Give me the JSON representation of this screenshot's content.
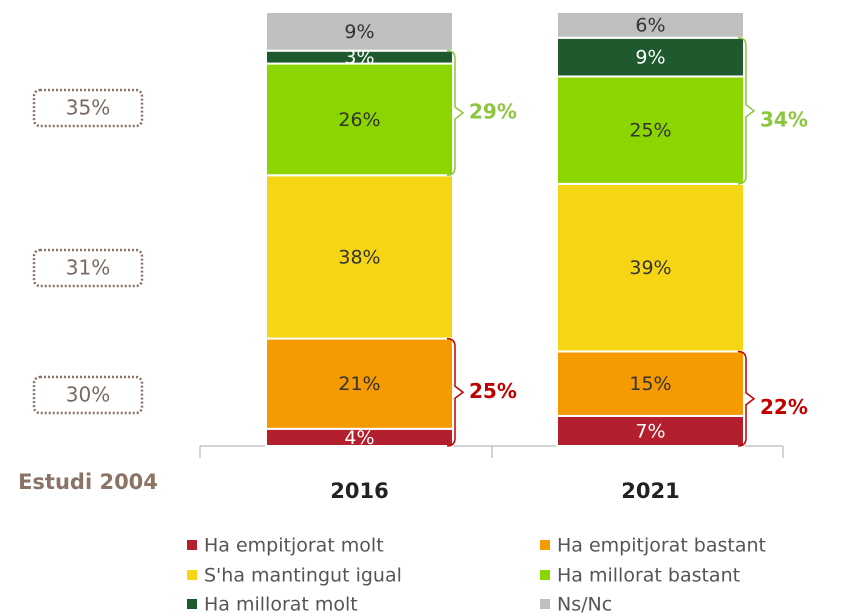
{
  "chart_data": {
    "type": "stacked_bar",
    "categories": [
      "2016",
      "2021"
    ],
    "series": [
      {
        "name": "Ha empitjorat molt",
        "color": "#b41f2e",
        "values": [
          4,
          7
        ],
        "value_labels": [
          "4%",
          "7%"
        ]
      },
      {
        "name": "Ha empitjorat bastant",
        "color": "#f59a00",
        "values": [
          21,
          15
        ],
        "value_labels": [
          "21%",
          "15%"
        ]
      },
      {
        "name": "S'ha mantingut igual",
        "color": "#f6d515",
        "values": [
          38,
          39
        ],
        "value_labels": [
          "38%",
          "39%"
        ]
      },
      {
        "name": "Ha millorat bastant",
        "color": "#8cd600",
        "values": [
          26,
          25
        ],
        "value_labels": [
          "26%",
          "25%"
        ]
      },
      {
        "name": "Ha millorat molt",
        "color": "#1e5a2d",
        "values": [
          3,
          9
        ],
        "value_labels": [
          "3%",
          "9%"
        ]
      },
      {
        "name": "Ns/Nc",
        "color": "#bfbfbf",
        "values": [
          9,
          6
        ],
        "value_labels": [
          "9%",
          "6%"
        ]
      }
    ],
    "brackets": [
      {
        "value": 29,
        "label": "29%",
        "color": "#8cc63f"
      },
      {
        "value": 34,
        "label": "34%",
        "color": "#8cc63f"
      },
      {
        "value": 25,
        "label": "25%",
        "color": "#c00000"
      },
      {
        "value": 22,
        "label": "22%",
        "color": "#c00000"
      }
    ],
    "reference": {
      "title": "Estudi 2004",
      "values": [
        35,
        31,
        30
      ],
      "value_labels": [
        "35%",
        "31%",
        "30%"
      ]
    }
  }
}
